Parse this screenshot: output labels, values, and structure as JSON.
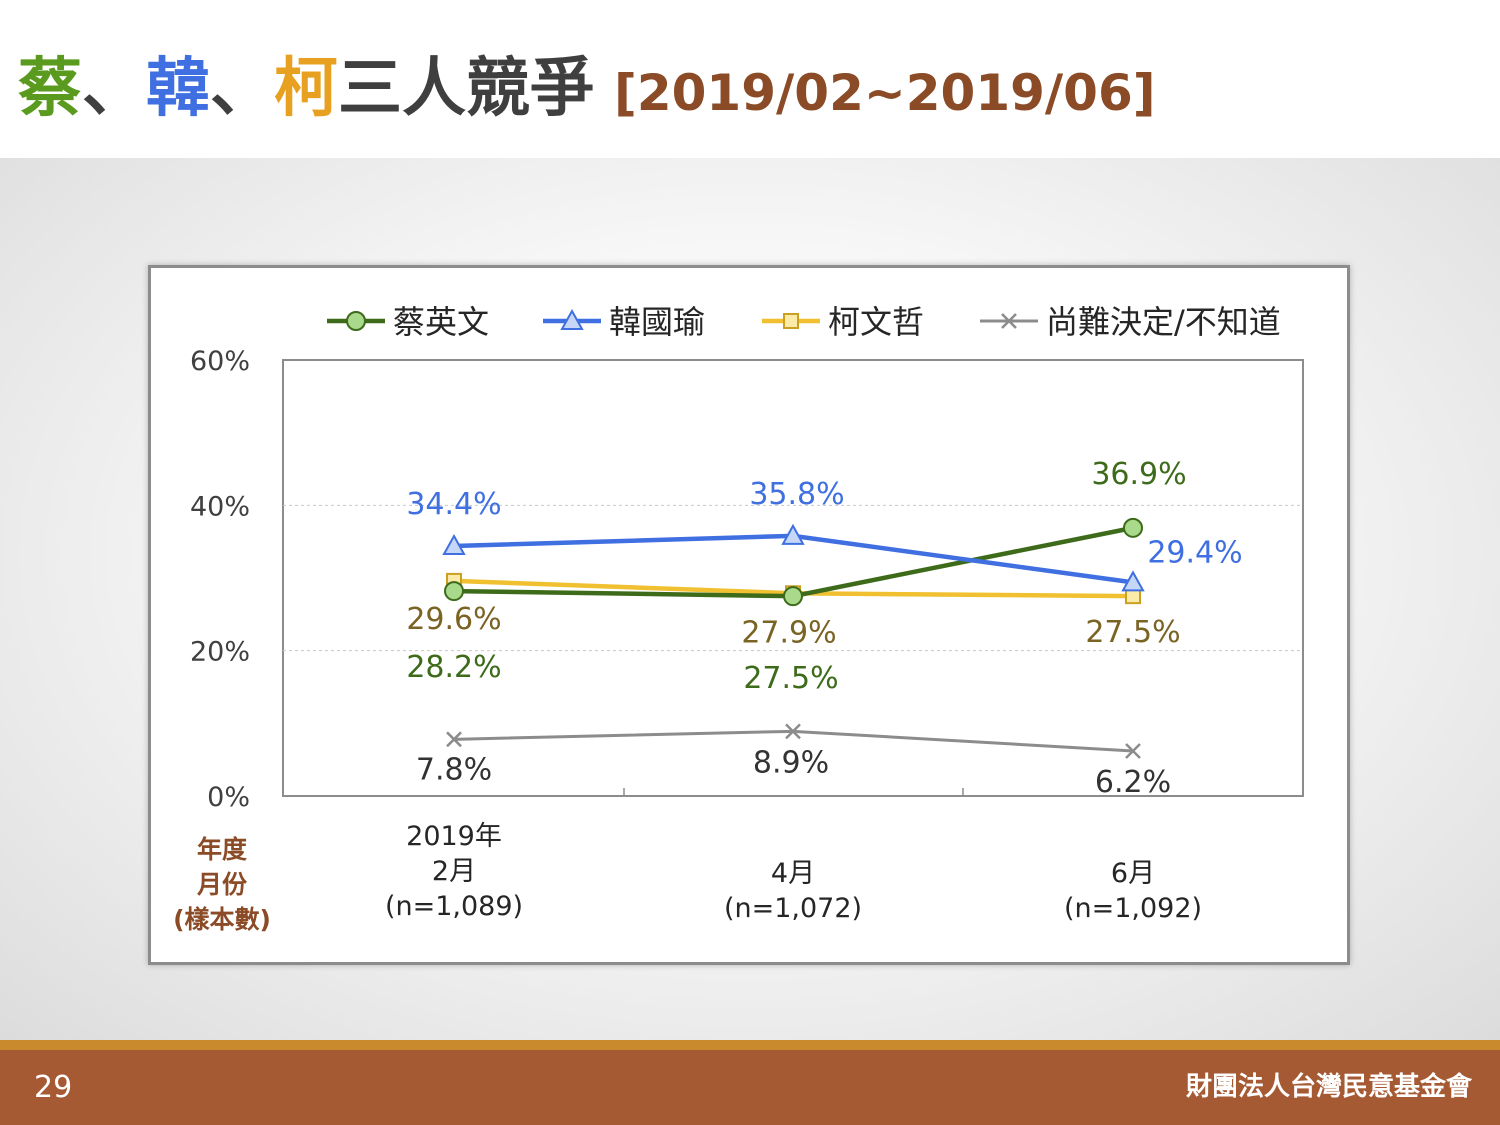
{
  "header": {
    "title_name1": "蔡",
    "title_sep1": "、",
    "title_name2": "韓",
    "title_sep2": "、",
    "title_name3": "柯",
    "title_rest": "三人競爭",
    "title_range": "[2019/02~2019/06]",
    "colors": {
      "name1": "#5a9a1e",
      "name2": "#3f6fe0",
      "name3": "#e8a020",
      "range": "#8a4b26"
    }
  },
  "footer": {
    "page_number": "29",
    "organization": "財團法人台灣民意基金會"
  },
  "chart_data": {
    "type": "line",
    "categories": [
      "2019年\n2月\n(n=1,089)",
      "4月\n(n=1,072)",
      "6月\n(n=1,092)"
    ],
    "category_lines": [
      [
        "2019年",
        "2月",
        "(n=1,089)"
      ],
      [
        "4月",
        "(n=1,072)"
      ],
      [
        "6月",
        "(n=1,092)"
      ]
    ],
    "axis_row_label": [
      "年度",
      "月份",
      "(樣本數)"
    ],
    "ylim": [
      0,
      60
    ],
    "yticks": [
      0,
      20,
      40,
      60
    ],
    "ytick_labels": [
      "0%",
      "20%",
      "40%",
      "60%"
    ],
    "grid": true,
    "legend_position": "top",
    "series": [
      {
        "name": "蔡英文",
        "values": [
          28.2,
          27.5,
          36.9
        ],
        "labels": [
          "28.2%",
          "27.5%",
          "36.9%"
        ],
        "color": "#3d6b1a",
        "marker": "circle",
        "marker_fill": "#a9d98a",
        "label_color": "#3d6b1a"
      },
      {
        "name": "韓國瑜",
        "values": [
          34.4,
          35.8,
          29.4
        ],
        "labels": [
          "34.4%",
          "35.8%",
          "29.4%"
        ],
        "color": "#3f6fe0",
        "marker": "triangle",
        "marker_fill": "#c5d6f7",
        "label_color": "#3f6fe0"
      },
      {
        "name": "柯文哲",
        "values": [
          29.6,
          27.9,
          27.5
        ],
        "labels": [
          "29.6%",
          "27.9%",
          "27.5%"
        ],
        "color": "#f0c030",
        "marker": "square",
        "marker_fill": "#fbeaa8",
        "label_color": "#7a6424"
      },
      {
        "name": "尚難決定/不知道",
        "values": [
          7.8,
          8.9,
          6.2
        ],
        "labels": [
          "7.8%",
          "8.9%",
          "6.2%"
        ],
        "color": "#8c8c8c",
        "marker": "x",
        "marker_fill": "#8c8c8c",
        "label_color": "#333333"
      }
    ]
  }
}
